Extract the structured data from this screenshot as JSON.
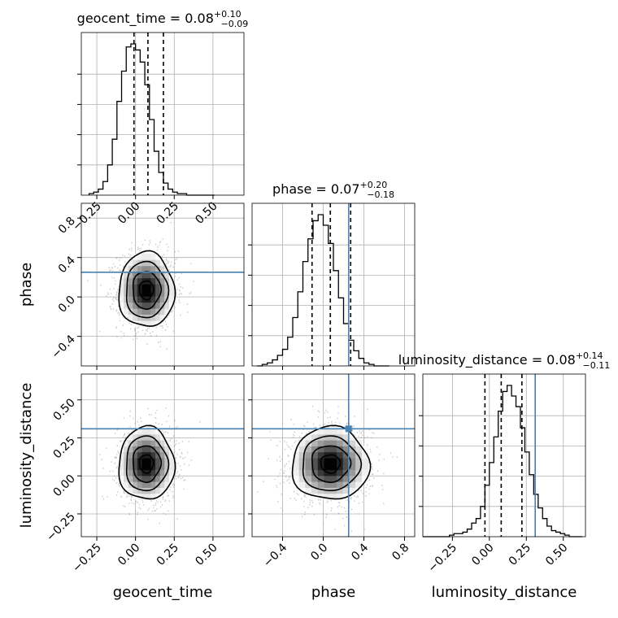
{
  "chart_data": {
    "type": "corner",
    "parameters": [
      "geocent_time",
      "phase",
      "luminosity_distance"
    ],
    "truth_color": "#4682b4",
    "truths": {
      "phase": 0.25,
      "luminosity_distance": 0.31
    },
    "panels": [
      {
        "id": "hist-geocent_time",
        "kind": "histogram",
        "parameter": "geocent_time",
        "title": "geocent_time = 0.08",
        "title_plus": "+0.10",
        "title_minus": "−0.09",
        "xlim": [
          -0.35,
          0.7
        ],
        "bin_edges": [
          -0.3,
          -0.27,
          -0.24,
          -0.21,
          -0.18,
          -0.15,
          -0.12,
          -0.09,
          -0.06,
          -0.03,
          0.0,
          0.03,
          0.06,
          0.09,
          0.12,
          0.15,
          0.18,
          0.21,
          0.24,
          0.27,
          0.3,
          0.33,
          0.36,
          0.39,
          0.42,
          0.45,
          0.48,
          0.51
        ],
        "counts": [
          0.01,
          0.02,
          0.04,
          0.09,
          0.2,
          0.37,
          0.62,
          0.82,
          0.98,
          1.0,
          0.96,
          0.88,
          0.73,
          0.5,
          0.29,
          0.15,
          0.08,
          0.04,
          0.02,
          0.01,
          0.01,
          0.0,
          0.0,
          0.0,
          0.0,
          0.0,
          0.0
        ],
        "quantiles": [
          -0.01,
          0.08,
          0.18
        ],
        "x_ticks": [
          -0.25,
          0.0,
          0.25,
          0.5
        ],
        "x_tick_labels": [
          "−0.25",
          "0.00",
          "0.25",
          "0.50"
        ]
      },
      {
        "id": "hist-phase",
        "kind": "histogram",
        "parameter": "phase",
        "title": "phase = 0.07",
        "title_plus": "+0.20",
        "title_minus": "−0.18",
        "xlim": [
          -0.7,
          0.9
        ],
        "bin_edges": [
          -0.65,
          -0.6,
          -0.55,
          -0.5,
          -0.45,
          -0.4,
          -0.35,
          -0.3,
          -0.25,
          -0.2,
          -0.15,
          -0.1,
          -0.05,
          0.0,
          0.05,
          0.1,
          0.15,
          0.2,
          0.25,
          0.3,
          0.35,
          0.4,
          0.45,
          0.5,
          0.55,
          0.6,
          0.65
        ],
        "counts": [
          0.0,
          0.01,
          0.02,
          0.04,
          0.07,
          0.11,
          0.19,
          0.32,
          0.49,
          0.69,
          0.84,
          0.96,
          1.0,
          0.93,
          0.81,
          0.63,
          0.45,
          0.28,
          0.17,
          0.1,
          0.05,
          0.02,
          0.01,
          0.0,
          0.0,
          0.0
        ],
        "quantiles": [
          -0.11,
          0.07,
          0.27
        ],
        "truth": 0.25
      },
      {
        "id": "hist-luminosity_distance",
        "kind": "histogram",
        "parameter": "luminosity_distance",
        "title": "luminosity_distance = 0.08",
        "title_plus": "+0.14",
        "title_minus": "−0.11",
        "xlim": [
          -0.45,
          0.65
        ],
        "bin_edges": [
          -0.45,
          -0.42,
          -0.39,
          -0.36,
          -0.33,
          -0.3,
          -0.27,
          -0.24,
          -0.21,
          -0.18,
          -0.15,
          -0.12,
          -0.09,
          -0.06,
          -0.03,
          0.0,
          0.03,
          0.06,
          0.09,
          0.12,
          0.15,
          0.18,
          0.21,
          0.24,
          0.27,
          0.3,
          0.33,
          0.36,
          0.39,
          0.42,
          0.45,
          0.48,
          0.51,
          0.54,
          0.57,
          0.6,
          0.63
        ],
        "counts": [
          0.0,
          0.0,
          0.0,
          0.0,
          0.0,
          0.0,
          0.01,
          0.02,
          0.02,
          0.03,
          0.05,
          0.09,
          0.12,
          0.2,
          0.34,
          0.49,
          0.66,
          0.83,
          0.96,
          1.0,
          0.93,
          0.86,
          0.72,
          0.56,
          0.41,
          0.28,
          0.19,
          0.12,
          0.07,
          0.04,
          0.03,
          0.02,
          0.01,
          0.0,
          0.0,
          0.0
        ],
        "quantiles": [
          -0.03,
          0.08,
          0.22
        ],
        "truth": 0.31,
        "x_ticks": [
          -0.25,
          0.0,
          0.25,
          0.5
        ],
        "x_tick_labels": [
          "−0.25",
          "0.00",
          "0.25",
          "0.50"
        ],
        "xlabel": "luminosity_distance"
      },
      {
        "id": "2d-geocent_time-phase",
        "kind": "2d",
        "x_param": "geocent_time",
        "y_param": "phase",
        "xlim": [
          -0.35,
          0.7
        ],
        "ylim": [
          -0.7,
          0.95
        ],
        "center": [
          0.07,
          0.07
        ],
        "sigma": [
          0.09,
          0.19
        ],
        "truth_y": 0.25,
        "y_ticks": [
          -0.4,
          0.0,
          0.4,
          0.8
        ],
        "y_tick_labels": [
          "−0.4",
          "0.0",
          "0.4",
          "0.8"
        ],
        "ylabel": "phase"
      },
      {
        "id": "2d-geocent_time-luminosity_distance",
        "kind": "2d",
        "x_param": "geocent_time",
        "y_param": "luminosity_distance",
        "xlim": [
          -0.35,
          0.7
        ],
        "ylim": [
          -0.4,
          0.67
        ],
        "center": [
          0.07,
          0.08
        ],
        "sigma": [
          0.09,
          0.12
        ],
        "truth_y": 0.31,
        "x_ticks": [
          -0.25,
          0.0,
          0.25,
          0.5
        ],
        "x_tick_labels": [
          "−0.25",
          "0.00",
          "0.25",
          "0.50"
        ],
        "y_ticks": [
          -0.25,
          0.0,
          0.25,
          0.5
        ],
        "y_tick_labels": [
          "−0.25",
          "0.00",
          "0.25",
          "0.50"
        ],
        "xlabel": "geocent_time",
        "ylabel": "luminosity_distance"
      },
      {
        "id": "2d-phase-luminosity_distance",
        "kind": "2d",
        "x_param": "phase",
        "y_param": "luminosity_distance",
        "xlim": [
          -0.7,
          0.9
        ],
        "ylim": [
          -0.4,
          0.67
        ],
        "center": [
          0.07,
          0.08
        ],
        "sigma": [
          0.19,
          0.12
        ],
        "truth_x": 0.25,
        "truth_y": 0.31,
        "x_ticks": [
          -0.4,
          0.0,
          0.4,
          0.8
        ],
        "x_tick_labels": [
          "−0.4",
          "0.0",
          "0.4",
          "0.8"
        ],
        "xlabel": "phase"
      }
    ]
  }
}
